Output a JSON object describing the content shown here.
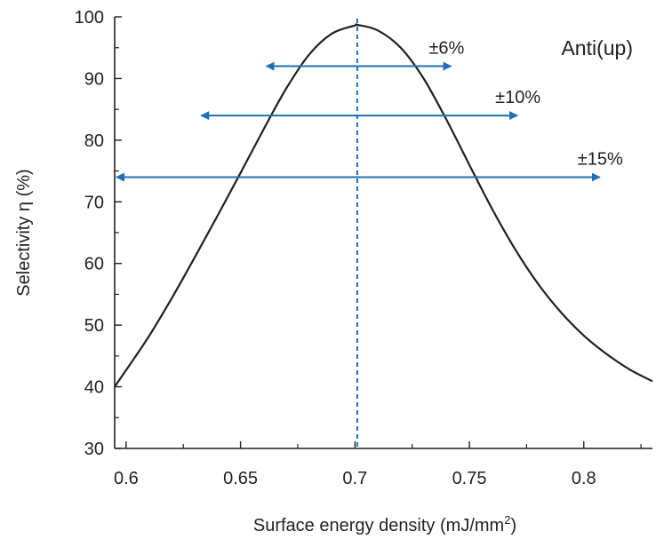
{
  "chart_data": {
    "type": "line",
    "xlabel": "Surface energy density (mJ/mm",
    "xlabel_sup": "2",
    "xlabel_end": ")",
    "ylabel": "Selectivity η (%)",
    "xlim": [
      0.595,
      0.83
    ],
    "ylim": [
      30,
      100
    ],
    "grid": false,
    "x_ticks": [
      {
        "value": 0.6,
        "label": "0.6"
      },
      {
        "value": 0.65,
        "label": "0.65"
      },
      {
        "value": 0.7,
        "label": "0.7"
      },
      {
        "value": 0.75,
        "label": "0.75"
      },
      {
        "value": 0.8,
        "label": "0.8"
      }
    ],
    "y_ticks": [
      {
        "value": 30,
        "label": "30"
      },
      {
        "value": 40,
        "label": "40"
      },
      {
        "value": 50,
        "label": "50"
      },
      {
        "value": 60,
        "label": "60"
      },
      {
        "value": 70,
        "label": "70"
      },
      {
        "value": 80,
        "label": "80"
      },
      {
        "value": 90,
        "label": "90"
      },
      {
        "value": 100,
        "label": "100"
      }
    ],
    "series": [
      {
        "color": "#231f20",
        "x": [
          0.595,
          0.6,
          0.61,
          0.62,
          0.63,
          0.64,
          0.65,
          0.66,
          0.67,
          0.68,
          0.69,
          0.7,
          0.701,
          0.71,
          0.72,
          0.73,
          0.74,
          0.75,
          0.76,
          0.77,
          0.78,
          0.79,
          0.8,
          0.81,
          0.82,
          0.83
        ],
        "y": [
          40,
          42.7,
          48.2,
          54.4,
          61.0,
          67.8,
          74.7,
          81.7,
          88.4,
          93.9,
          97.3,
          98.6,
          98.7,
          97.8,
          95.0,
          90.0,
          83.3,
          76.0,
          68.8,
          62.3,
          56.7,
          52.1,
          48.3,
          45.3,
          42.8,
          40.9
        ]
      }
    ],
    "reference_line": {
      "x": 0.701,
      "color": "#1f6fb5",
      "style": "dashed"
    },
    "ranges": [
      {
        "label": "±6%",
        "y": 92,
        "x_start": 0.6605,
        "x_end": 0.742
      },
      {
        "label": "±10%",
        "y": 84,
        "x_start": 0.632,
        "x_end": 0.771
      },
      {
        "label": "±15%",
        "y": 74,
        "x_start": 0.595,
        "x_end": 0.807
      }
    ],
    "range_color": "#1f6fb5",
    "annotation": "Anti(up)"
  }
}
